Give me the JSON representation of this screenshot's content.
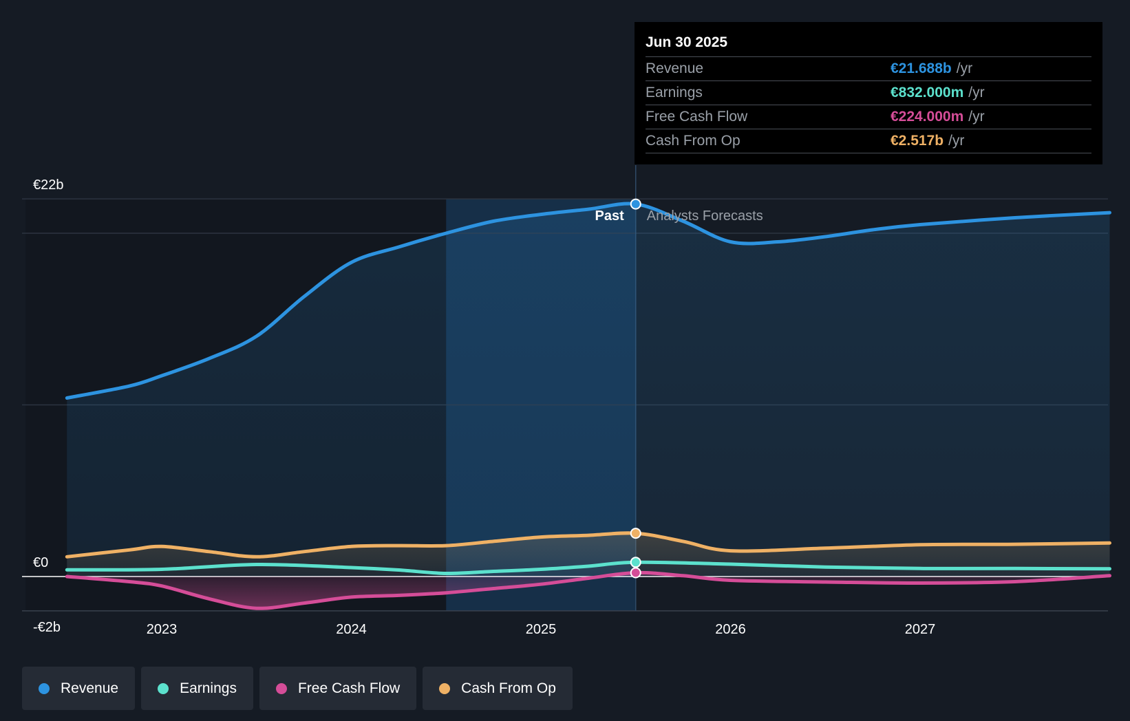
{
  "chart_data": {
    "type": "area",
    "title": "",
    "xlabel": "",
    "ylabel": "",
    "ylim": [
      -2,
      22
    ],
    "y_axis_labels": [
      {
        "value": 22,
        "label": "€22b"
      },
      {
        "value": 0,
        "label": "€0"
      },
      {
        "value": -2,
        "label": "-€2b"
      }
    ],
    "x_ticks": [
      {
        "value": 2023,
        "label": "2023"
      },
      {
        "value": 2024,
        "label": "2024"
      },
      {
        "value": 2025,
        "label": "2025"
      },
      {
        "value": 2026,
        "label": "2026"
      },
      {
        "value": 2027,
        "label": "2027"
      }
    ],
    "x_range": [
      2022.27,
      2028.0
    ],
    "highlight_start": 2024.5,
    "current_date": 2025.5,
    "past_label": "Past",
    "forecast_label": "Analysts Forecasts",
    "series": [
      {
        "name": "Revenue",
        "color": "#2d93e0",
        "points": [
          [
            2022.5,
            10.4
          ],
          [
            2022.83,
            11.1
          ],
          [
            2023.0,
            11.7
          ],
          [
            2023.25,
            12.7
          ],
          [
            2023.5,
            14.0
          ],
          [
            2023.75,
            16.3
          ],
          [
            2024.0,
            18.3
          ],
          [
            2024.25,
            19.2
          ],
          [
            2024.5,
            20.0
          ],
          [
            2024.75,
            20.7
          ],
          [
            2025.0,
            21.1
          ],
          [
            2025.25,
            21.4
          ],
          [
            2025.5,
            21.7
          ],
          [
            2025.75,
            20.7
          ],
          [
            2026.0,
            19.5
          ],
          [
            2026.25,
            19.5
          ],
          [
            2026.5,
            19.8
          ],
          [
            2026.75,
            20.2
          ],
          [
            2027.0,
            20.5
          ],
          [
            2027.5,
            20.9
          ],
          [
            2028.0,
            21.2
          ]
        ]
      },
      {
        "name": "Earnings",
        "color": "#5ce1cd",
        "points": [
          [
            2022.5,
            0.39
          ],
          [
            2023.0,
            0.42
          ],
          [
            2023.5,
            0.7
          ],
          [
            2024.0,
            0.52
          ],
          [
            2024.25,
            0.38
          ],
          [
            2024.5,
            0.18
          ],
          [
            2024.75,
            0.3
          ],
          [
            2025.0,
            0.42
          ],
          [
            2025.25,
            0.6
          ],
          [
            2025.5,
            0.83
          ],
          [
            2026.0,
            0.72
          ],
          [
            2026.5,
            0.55
          ],
          [
            2027.0,
            0.47
          ],
          [
            2027.5,
            0.47
          ],
          [
            2028.0,
            0.45
          ]
        ]
      },
      {
        "name": "Free Cash Flow",
        "color": "#d54d98",
        "points": [
          [
            2022.5,
            0.0
          ],
          [
            2022.83,
            -0.3
          ],
          [
            2023.0,
            -0.55
          ],
          [
            2023.25,
            -1.3
          ],
          [
            2023.5,
            -1.85
          ],
          [
            2023.75,
            -1.55
          ],
          [
            2024.0,
            -1.2
          ],
          [
            2024.25,
            -1.1
          ],
          [
            2024.5,
            -0.95
          ],
          [
            2024.75,
            -0.7
          ],
          [
            2025.0,
            -0.45
          ],
          [
            2025.25,
            -0.1
          ],
          [
            2025.5,
            0.22
          ],
          [
            2025.75,
            0.05
          ],
          [
            2026.0,
            -0.22
          ],
          [
            2026.5,
            -0.32
          ],
          [
            2027.0,
            -0.38
          ],
          [
            2027.5,
            -0.3
          ],
          [
            2028.0,
            0.05
          ]
        ]
      },
      {
        "name": "Cash From Op",
        "color": "#efb165",
        "points": [
          [
            2022.5,
            1.15
          ],
          [
            2022.83,
            1.55
          ],
          [
            2023.0,
            1.75
          ],
          [
            2023.25,
            1.45
          ],
          [
            2023.5,
            1.15
          ],
          [
            2023.75,
            1.45
          ],
          [
            2024.0,
            1.75
          ],
          [
            2024.25,
            1.8
          ],
          [
            2024.5,
            1.8
          ],
          [
            2024.75,
            2.05
          ],
          [
            2025.0,
            2.3
          ],
          [
            2025.25,
            2.4
          ],
          [
            2025.5,
            2.52
          ],
          [
            2025.75,
            2.05
          ],
          [
            2026.0,
            1.5
          ],
          [
            2026.5,
            1.65
          ],
          [
            2027.0,
            1.85
          ],
          [
            2027.5,
            1.88
          ],
          [
            2028.0,
            1.95
          ]
        ]
      }
    ]
  },
  "tooltip": {
    "date": "Jun 30 2025",
    "rows": [
      {
        "label": "Revenue",
        "value": "€21.688b",
        "unit": "/yr",
        "color": "#2d93e0"
      },
      {
        "label": "Earnings",
        "value": "€832.000m",
        "unit": "/yr",
        "color": "#5ce1cd"
      },
      {
        "label": "Free Cash Flow",
        "value": "€224.000m",
        "unit": "/yr",
        "color": "#d54d98"
      },
      {
        "label": "Cash From Op",
        "value": "€2.517b",
        "unit": "/yr",
        "color": "#efb165"
      }
    ]
  },
  "legend": [
    {
      "label": "Revenue",
      "color": "#2d93e0"
    },
    {
      "label": "Earnings",
      "color": "#5ce1cd"
    },
    {
      "label": "Free Cash Flow",
      "color": "#d54d98"
    },
    {
      "label": "Cash From Op",
      "color": "#efb165"
    }
  ]
}
